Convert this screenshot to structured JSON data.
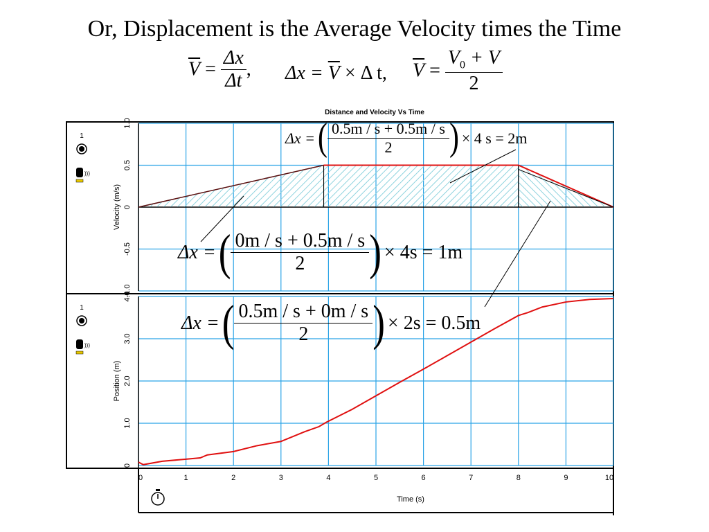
{
  "title": "Or, Displacement is the Average Velocity times the Time",
  "formulas": {
    "vbar": "V",
    "dx": "Δx",
    "dt": "Δt",
    "comma1": ",",
    "f2": "Δx = ",
    "f2b": " × Δ t,",
    "v0": "V",
    "v0sub": "0",
    "plusv": " + V",
    "two": "2",
    "eq": " = "
  },
  "annotations": {
    "top": {
      "lhs": "Δx =",
      "num": "0.5m / s + 0.5m / s",
      "den": "2",
      "rhs": "× 4 s = 2m"
    },
    "mid": {
      "lhs": "Δx =",
      "num": "0m / s + 0.5m / s",
      "den": "2",
      "rhs": "× 4s = 1m"
    },
    "low": {
      "lhs": "Δx =",
      "num": "0.5m / s + 0m / s",
      "den": "2",
      "rhs": "× 2s = 0.5m"
    }
  },
  "sensor": {
    "label1": "1",
    "label2": "1"
  },
  "chart_data": [
    {
      "type": "area",
      "title": "Distance and Velocity Vs Time",
      "xlabel": "Time (s)",
      "ylabel": "Velocity (m/s)",
      "xlim": [
        0,
        10
      ],
      "ylim": [
        -1.0,
        1.0
      ],
      "yticks": [
        "-1.0",
        "-0.5",
        "0",
        "0.5",
        "1.0"
      ],
      "grid": true,
      "series": [
        {
          "x": [
            0,
            3.9,
            8,
            10
          ],
          "y": [
            0,
            0.5,
            0.5,
            0
          ]
        }
      ],
      "line_color": "#e01010",
      "hatch_color": "#7fd0dc"
    },
    {
      "type": "line",
      "xlabel": "Time (s)",
      "ylabel": "Position (m)",
      "xlim": [
        0,
        10
      ],
      "ylim": [
        0,
        4.0
      ],
      "xticks": [
        "0",
        "1",
        "2",
        "3",
        "4",
        "5",
        "6",
        "7",
        "8",
        "9",
        "10"
      ],
      "yticks": [
        "0",
        "1.0",
        "2.0",
        "3.0",
        "4.0"
      ],
      "grid": true,
      "series": [
        {
          "x": [
            0,
            0.1,
            0.5,
            1.0,
            1.3,
            1.45,
            2.0,
            2.5,
            3.0,
            3.5,
            3.8,
            3.95,
            4.5,
            5.0,
            5.5,
            6.0,
            6.5,
            7.0,
            7.5,
            8.0,
            8.2,
            8.5,
            9.0,
            9.5,
            10.0
          ],
          "y": [
            0.08,
            0.02,
            0.1,
            0.15,
            0.18,
            0.25,
            0.33,
            0.47,
            0.57,
            0.8,
            0.92,
            1.02,
            1.33,
            1.65,
            1.97,
            2.28,
            2.6,
            2.92,
            3.24,
            3.55,
            3.62,
            3.75,
            3.87,
            3.93,
            3.95
          ]
        }
      ],
      "line_color": "#e01010"
    }
  ]
}
